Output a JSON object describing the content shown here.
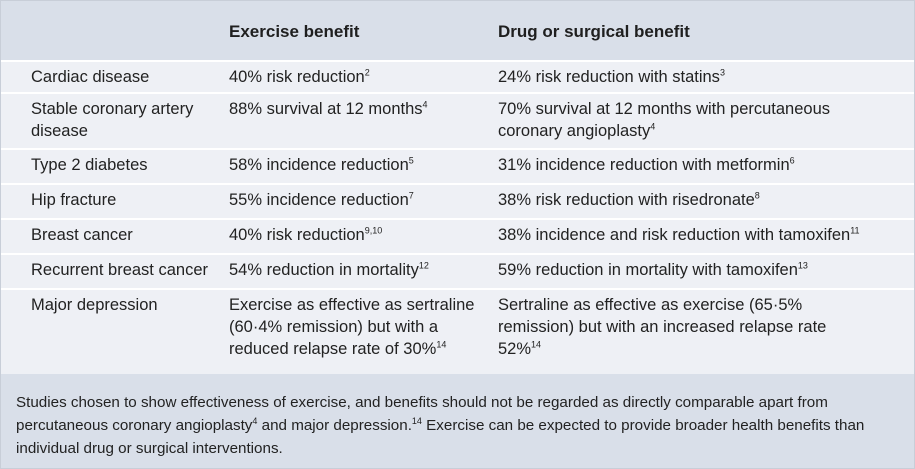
{
  "table": {
    "headers": {
      "condition": "",
      "exercise": "Exercise benefit",
      "drug": "Drug or surgical benefit"
    },
    "rows": [
      {
        "condition": "Cardiac disease",
        "exercise": "40% risk reduction",
        "exercise_ref": "2",
        "drug": "24% risk reduction with statins",
        "drug_ref": "3"
      },
      {
        "condition": "Stable coronary artery disease",
        "exercise": "88% survival at 12 months",
        "exercise_ref": "4",
        "drug": "70% survival at 12 months with percutaneous coronary angioplasty",
        "drug_ref": "4"
      },
      {
        "condition": "Type 2 diabetes",
        "exercise": "58% incidence reduction",
        "exercise_ref": "5",
        "drug": "31% incidence reduction with metformin",
        "drug_ref": "6"
      },
      {
        "condition": "Hip fracture",
        "exercise": "55% incidence reduction",
        "exercise_ref": "7",
        "drug": "38% risk reduction with risedronate",
        "drug_ref": "8"
      },
      {
        "condition": "Breast cancer",
        "exercise": "40% risk reduction",
        "exercise_ref": "9,10",
        "drug": "38% incidence and risk reduction with tamoxifen",
        "drug_ref": "11"
      },
      {
        "condition": "Recurrent breast cancer",
        "exercise": "54% reduction in mortality",
        "exercise_ref": "12",
        "drug": "59% reduction in mortality with tamoxifen",
        "drug_ref": "13"
      },
      {
        "condition": "Major depression",
        "exercise": "Exercise as effective as sertraline (60·4% remission) but with a reduced relapse rate of 30%",
        "exercise_ref": "14",
        "drug": "Sertraline as effective as exercise (65·5% remission) but with an increased relapse rate 52%",
        "drug_ref": "14"
      }
    ]
  },
  "footnote": {
    "part1": "Studies chosen to show effectiveness of exercise, and benefits should not be regarded as directly comparable apart from percutaneous coronary angioplasty",
    "ref1": "4",
    "part2": " and major depression.",
    "ref2": "14",
    "part3": " Exercise can be expected to provide broader health benefits than individual drug or surgical interventions."
  },
  "colors": {
    "header_background": "#d9dfe9",
    "row_background": "#eef0f5",
    "row_separator": "#ffffff"
  }
}
